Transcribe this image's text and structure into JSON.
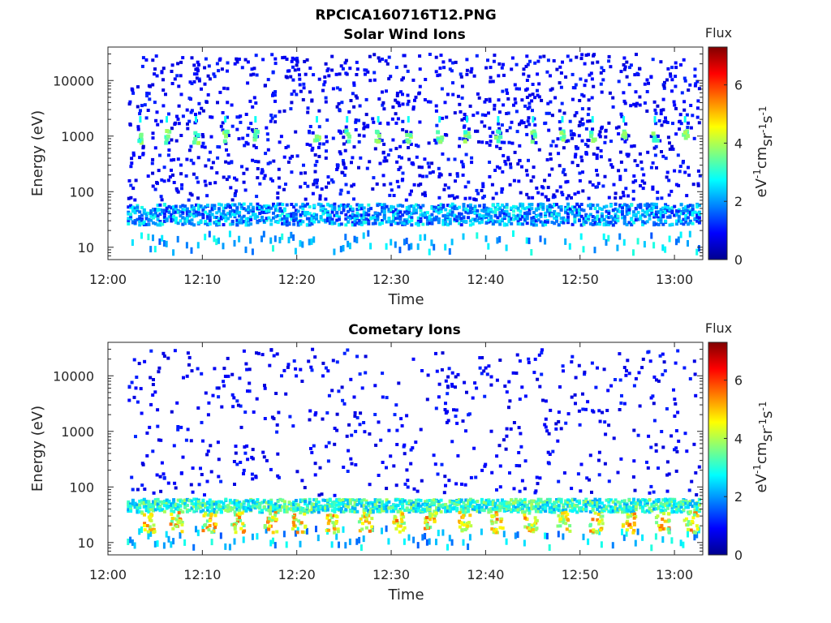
{
  "figure_title": "RPCICA160716T12.PNG",
  "chart_data": [
    {
      "type": "heatmap",
      "title": "Solar Wind Ions",
      "xlabel": "Time",
      "ylabel": "Energy (eV)",
      "x_ticks": [
        "12:00",
        "12:10",
        "12:20",
        "12:30",
        "12:40",
        "12:50",
        "13:00"
      ],
      "xlim": [
        "12:00",
        "13:03"
      ],
      "y_scale": "log",
      "y_ticks": [
        10,
        100,
        1000,
        10000
      ],
      "y_tick_labels": [
        "10",
        "100",
        "1000",
        "10000"
      ],
      "ylim": [
        6,
        40000
      ],
      "colorbar": {
        "title": "Flux",
        "label": "eV-1cm-2sr-1s-1",
        "ticks": [
          0,
          2,
          4,
          6
        ],
        "range": [
          0,
          7.3
        ],
        "colormap": "jet"
      },
      "bursts": {
        "times": [
          "12:03.3",
          "12:06.1",
          "12:09.2",
          "12:12.3",
          "12:15.5",
          "12:22.0",
          "12:25.2",
          "12:28.5",
          "12:31.7",
          "12:35.0",
          "12:37.9",
          "12:41.2",
          "12:44.9",
          "12:48.0",
          "12:51.2",
          "12:54.5",
          "12:57.8",
          "13:01.0"
        ],
        "energy_eV": 1000,
        "flux": 3.5
      },
      "low_energy_band": {
        "energy_eV": [
          25,
          60
        ],
        "flux": [
          1,
          3
        ]
      },
      "background": {
        "energy_eV": [
          6,
          40000
        ],
        "flux": 1
      }
    },
    {
      "type": "heatmap",
      "title": "Cometary Ions",
      "xlabel": "Time",
      "ylabel": "Energy (eV)",
      "x_ticks": [
        "12:00",
        "12:10",
        "12:20",
        "12:30",
        "12:40",
        "12:50",
        "13:00"
      ],
      "xlim": [
        "12:00",
        "13:03"
      ],
      "y_scale": "log",
      "y_ticks": [
        10,
        100,
        1000,
        10000
      ],
      "y_tick_labels": [
        "10",
        "100",
        "1000",
        "10000"
      ],
      "ylim": [
        6,
        40000
      ],
      "colorbar": {
        "title": "Flux",
        "label": "eV-1cm-2sr-1s-1",
        "ticks": [
          0,
          2,
          4,
          6
        ],
        "range": [
          0,
          7.3
        ],
        "colormap": "jet"
      },
      "bursts": {
        "times": [
          "12:04",
          "12:07",
          "12:10.5",
          "12:13.5",
          "12:17",
          "12:20",
          "12:23.5",
          "12:27",
          "12:30.5",
          "12:34",
          "12:37.5",
          "12:41",
          "12:44.5",
          "12:48",
          "12:51.5",
          "12:55",
          "12:58.5",
          "13:01.5"
        ],
        "energy_eV": [
          15,
          35
        ],
        "flux": 4.8
      },
      "low_energy_band": {
        "energy_eV": [
          35,
          60
        ],
        "flux": [
          2,
          4
        ]
      },
      "background": {
        "energy_eV": [
          6,
          40000
        ],
        "flux": 1
      }
    }
  ]
}
